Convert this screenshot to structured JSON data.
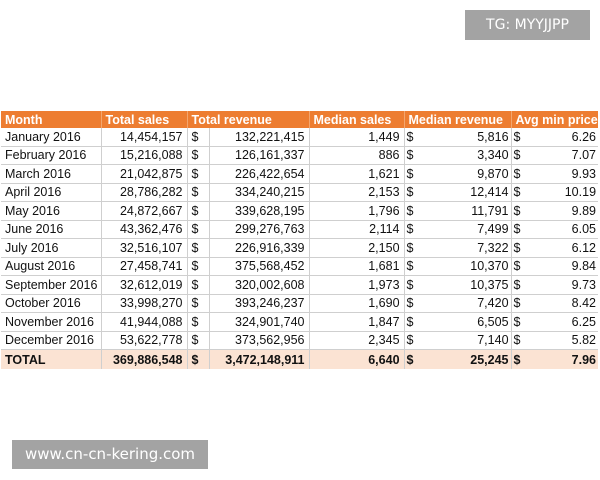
{
  "watermarks": {
    "top": "TG: MYYJJPP",
    "bottom": "www.cn-cn-kering.com"
  },
  "colors": {
    "header_bg": "#ed7d31",
    "total_bg": "#fbe3d3",
    "watermark_bg": "#a3a3a3"
  },
  "table": {
    "headers": [
      "Month",
      "Total sales",
      "Total revenue",
      "Median sales",
      "Median revenue",
      "Avg min price"
    ],
    "currency_symbol": "$",
    "rows": [
      {
        "month": "January 2016",
        "total_sales": "14,454,157",
        "total_revenue": "132,221,415",
        "median_sales": "1,449",
        "median_revenue": "5,816",
        "avg_min_price": "6.26"
      },
      {
        "month": "February 2016",
        "total_sales": "15,216,088",
        "total_revenue": "126,161,337",
        "median_sales": "886",
        "median_revenue": "3,340",
        "avg_min_price": "7.07"
      },
      {
        "month": "March 2016",
        "total_sales": "21,042,875",
        "total_revenue": "226,422,654",
        "median_sales": "1,621",
        "median_revenue": "9,870",
        "avg_min_price": "9.93"
      },
      {
        "month": "April 2016",
        "total_sales": "28,786,282",
        "total_revenue": "334,240,215",
        "median_sales": "2,153",
        "median_revenue": "12,414",
        "avg_min_price": "10.19"
      },
      {
        "month": "May 2016",
        "total_sales": "24,872,667",
        "total_revenue": "339,628,195",
        "median_sales": "1,796",
        "median_revenue": "11,791",
        "avg_min_price": "9.89"
      },
      {
        "month": "June 2016",
        "total_sales": "43,362,476",
        "total_revenue": "299,276,763",
        "median_sales": "2,114",
        "median_revenue": "7,499",
        "avg_min_price": "6.05"
      },
      {
        "month": "July 2016",
        "total_sales": "32,516,107",
        "total_revenue": "226,916,339",
        "median_sales": "2,150",
        "median_revenue": "7,322",
        "avg_min_price": "6.12"
      },
      {
        "month": "August 2016",
        "total_sales": "27,458,741",
        "total_revenue": "375,568,452",
        "median_sales": "1,681",
        "median_revenue": "10,370",
        "avg_min_price": "9.84"
      },
      {
        "month": "September 2016",
        "total_sales": "32,612,019",
        "total_revenue": "320,002,608",
        "median_sales": "1,973",
        "median_revenue": "10,375",
        "avg_min_price": "9.73"
      },
      {
        "month": "October 2016",
        "total_sales": "33,998,270",
        "total_revenue": "393,246,237",
        "median_sales": "1,690",
        "median_revenue": "7,420",
        "avg_min_price": "8.42"
      },
      {
        "month": "November 2016",
        "total_sales": "41,944,088",
        "total_revenue": "324,901,740",
        "median_sales": "1,847",
        "median_revenue": "6,505",
        "avg_min_price": "6.25"
      },
      {
        "month": "December 2016",
        "total_sales": "53,622,778",
        "total_revenue": "373,562,956",
        "median_sales": "2,345",
        "median_revenue": "7,140",
        "avg_min_price": "5.82"
      }
    ],
    "total": {
      "month": "TOTAL",
      "total_sales": "369,886,548",
      "total_revenue": "3,472,148,911",
      "median_sales": "6,640",
      "median_revenue": "25,245",
      "avg_min_price": "7.96"
    }
  }
}
